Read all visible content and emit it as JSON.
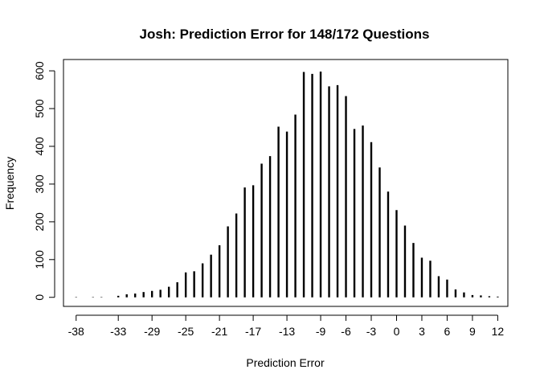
{
  "chart_data": {
    "type": "bar",
    "title": "Josh: Prediction Error for 148/172 Questions",
    "xlabel": "Prediction Error",
    "ylabel": "Frequency",
    "x": [
      -38,
      -36,
      -35,
      -33,
      -32,
      -31,
      -30,
      -29,
      -28,
      -27,
      -26,
      -25,
      -24,
      -23,
      -22,
      -21,
      -20,
      -19,
      -18,
      -17,
      -16,
      -15,
      -14,
      -13,
      -12,
      -11,
      -10,
      -9,
      -8,
      -7,
      -6,
      -5,
      -4,
      -3,
      -2,
      -1,
      0,
      1,
      2,
      3,
      4,
      5,
      6,
      7,
      8,
      9,
      10,
      11,
      12
    ],
    "values": [
      1,
      1,
      1,
      4,
      8,
      10,
      14,
      17,
      20,
      28,
      40,
      66,
      69,
      90,
      113,
      138,
      188,
      222,
      291,
      297,
      354,
      374,
      452,
      439,
      484,
      597,
      592,
      598,
      559,
      562,
      533,
      446,
      455,
      411,
      344,
      280,
      231,
      190,
      144,
      105,
      97,
      56,
      47,
      21,
      13,
      6,
      5,
      3,
      2
    ],
    "xticks": [
      -38,
      -33,
      -29,
      -25,
      -21,
      -17,
      -13,
      -9,
      -6,
      -3,
      0,
      3,
      6,
      9,
      12
    ],
    "yticks": [
      0,
      100,
      200,
      300,
      400,
      500,
      600
    ],
    "xlim": [
      -39.5,
      13.2
    ],
    "ylim": [
      -24,
      630
    ],
    "bar_color": "#000000"
  }
}
